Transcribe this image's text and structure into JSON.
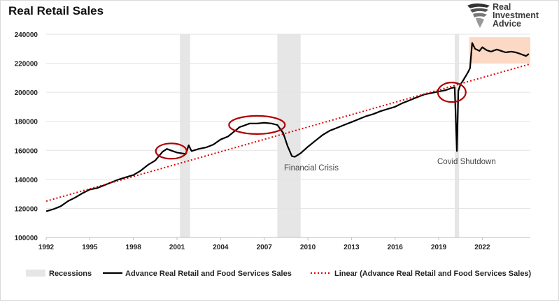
{
  "page": {
    "title": "Real Retail Sales"
  },
  "logo": {
    "line1": "Real",
    "line2": "Investment",
    "line3": "Advice",
    "icon": "eagle-icon"
  },
  "colors": {
    "series": "#000000",
    "trend": "#e00000",
    "recession": "#e6e6e6",
    "highlight_fill": "#fbd9c4",
    "circle": "#b00000"
  },
  "annotations": {
    "financial_crisis": "Financial Crisis",
    "covid": "Covid Shutdown"
  },
  "chart_data": {
    "type": "line",
    "title": "Real Retail Sales",
    "xlabel": "",
    "ylabel": "",
    "xlim": [
      1992,
      2025.3
    ],
    "ylim": [
      100000,
      240000
    ],
    "x_ticks": [
      1992,
      1995,
      1998,
      2001,
      2004,
      2007,
      2010,
      2013,
      2016,
      2019,
      2022
    ],
    "y_ticks": [
      100000,
      120000,
      140000,
      160000,
      180000,
      200000,
      220000,
      240000
    ],
    "y_tick_labels": [
      "100000",
      "120000",
      "140000",
      "160000",
      "180000",
      "200000",
      "220000",
      "240000"
    ],
    "grid": "horizontal",
    "legend_position": "bottom",
    "legend": [
      "Recessions",
      "Advance Real Retail and Food Services Sales",
      "Linear (Advance Real Retail and Food Services Sales)"
    ],
    "recessions": [
      [
        2001.2,
        2001.9
      ],
      [
        2007.9,
        2009.5
      ],
      [
        2020.1,
        2020.4
      ]
    ],
    "series": [
      {
        "name": "Advance Real Retail and Food Services Sales",
        "x": [
          1992.0,
          1992.5,
          1993.0,
          1993.5,
          1994.0,
          1994.5,
          1995.0,
          1995.5,
          1996.0,
          1996.5,
          1997.0,
          1997.5,
          1998.0,
          1998.5,
          1999.0,
          1999.5,
          2000.0,
          2000.3,
          2000.7,
          2001.0,
          2001.3,
          2001.6,
          2001.8,
          2002.0,
          2002.5,
          2003.0,
          2003.5,
          2004.0,
          2004.5,
          2005.0,
          2005.3,
          2005.6,
          2006.0,
          2006.5,
          2007.0,
          2007.5,
          2007.9,
          2008.3,
          2008.6,
          2008.9,
          2009.1,
          2009.5,
          2010.0,
          2010.5,
          2011.0,
          2011.5,
          2012.0,
          2012.5,
          2013.0,
          2013.5,
          2014.0,
          2014.5,
          2015.0,
          2015.5,
          2016.0,
          2016.5,
          2017.0,
          2017.5,
          2018.0,
          2018.5,
          2019.0,
          2019.5,
          2019.9,
          2020.1,
          2020.25,
          2020.35,
          2020.5,
          2020.7,
          2021.0,
          2021.15,
          2021.3,
          2021.5,
          2021.8,
          2022.0,
          2022.3,
          2022.6,
          2023.0,
          2023.3,
          2023.6,
          2024.0,
          2024.3,
          2024.6,
          2025.0,
          2025.2
        ],
        "values": [
          118000,
          119500,
          121500,
          125000,
          127500,
          130500,
          133000,
          134000,
          136000,
          138000,
          140000,
          141500,
          143000,
          146000,
          150000,
          153000,
          159000,
          161000,
          159500,
          158500,
          158000,
          157500,
          163500,
          159500,
          161000,
          162000,
          164000,
          167500,
          169500,
          173500,
          176000,
          177000,
          178500,
          178500,
          179000,
          178500,
          177500,
          172000,
          163000,
          156000,
          155500,
          158000,
          162500,
          166500,
          170500,
          173500,
          175500,
          177500,
          179500,
          181500,
          183500,
          185000,
          187000,
          188500,
          190000,
          192500,
          194500,
          196500,
          198500,
          199500,
          200500,
          201500,
          203000,
          203500,
          159500,
          201000,
          205500,
          208500,
          213500,
          216500,
          234000,
          230000,
          228500,
          231000,
          229000,
          228000,
          229500,
          228500,
          227500,
          228000,
          227500,
          226500,
          225000,
          226500
        ]
      },
      {
        "name": "Linear (Advance Real Retail and Food Services Sales)",
        "x": [
          1992,
          2025.3
        ],
        "values": [
          125000,
          219500
        ]
      }
    ]
  }
}
